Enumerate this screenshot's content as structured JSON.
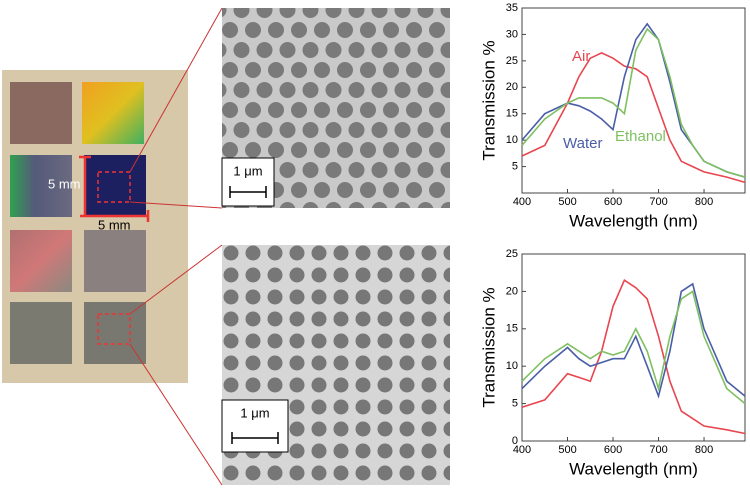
{
  "photo": {
    "labels": [
      "5 mm",
      "5 mm"
    ]
  },
  "sem": [
    {
      "scale_bar": "1 μm"
    },
    {
      "scale_bar": "1 μm"
    }
  ],
  "chart_data": [
    {
      "type": "line",
      "x_label": "Wavelength (nm)",
      "y_label": "Transmission %",
      "x": [
        400,
        450,
        500,
        525,
        550,
        575,
        600,
        625,
        650,
        675,
        700,
        725,
        750,
        775,
        800,
        850,
        890
      ],
      "xlim": [
        400,
        890
      ],
      "xticks": [
        400,
        500,
        600,
        700,
        800
      ],
      "ylim": [
        0,
        35
      ],
      "yticks": [
        5,
        10,
        15,
        20,
        25,
        30,
        35
      ],
      "series": [
        {
          "name": "Air",
          "color": "#e8464f",
          "values": [
            7,
            9,
            17,
            22,
            25.5,
            26.5,
            25.5,
            24,
            23.5,
            22,
            16,
            10,
            6,
            5,
            4,
            3,
            2
          ]
        },
        {
          "name": "Water",
          "color": "#4a5ea8",
          "values": [
            10,
            15,
            17,
            16.5,
            15.5,
            14,
            12,
            22,
            29,
            32,
            29,
            21,
            12,
            9,
            6,
            4,
            3
          ]
        },
        {
          "name": "Ethanol",
          "color": "#7ec061",
          "values": [
            9,
            14,
            17,
            18,
            18,
            18,
            17,
            15,
            27,
            31,
            29,
            22,
            13,
            9,
            6,
            4,
            3
          ]
        }
      ]
    },
    {
      "type": "line",
      "x_label": "Wavelength (nm)",
      "y_label": "Transmission %",
      "x": [
        400,
        450,
        500,
        525,
        550,
        575,
        600,
        625,
        650,
        675,
        700,
        725,
        750,
        775,
        800,
        850,
        890
      ],
      "xlim": [
        400,
        890
      ],
      "xticks": [
        400,
        500,
        600,
        700,
        800
      ],
      "ylim": [
        0,
        25
      ],
      "yticks": [
        0,
        5,
        10,
        15,
        20,
        25
      ],
      "series": [
        {
          "name": "Air",
          "color": "#e8464f",
          "values": [
            4.5,
            5.5,
            9,
            8.5,
            8,
            12,
            18,
            21.5,
            20.5,
            19,
            14,
            8,
            4,
            3,
            2,
            1.5,
            1
          ]
        },
        {
          "name": "Water",
          "color": "#4a5ea8",
          "values": [
            7,
            10,
            12.5,
            11,
            10,
            10.5,
            11,
            11,
            14,
            10,
            6,
            12,
            20,
            21,
            15,
            8,
            6
          ]
        },
        {
          "name": "Ethanol",
          "color": "#7ec061",
          "values": [
            8,
            11,
            13,
            12,
            11,
            12,
            11.5,
            12,
            15,
            12,
            7,
            14,
            19,
            20,
            14,
            7,
            5
          ]
        }
      ]
    }
  ]
}
